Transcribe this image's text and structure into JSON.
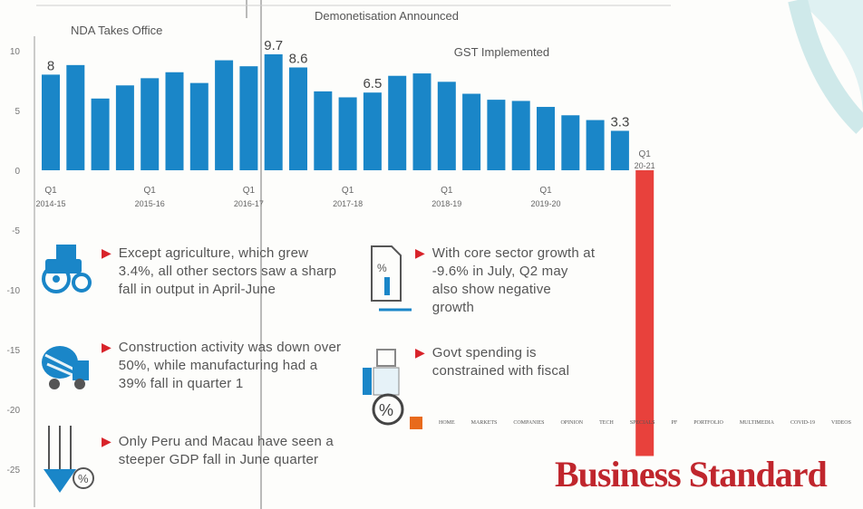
{
  "chart_data": {
    "type": "bar",
    "y_ticks": [
      "10",
      "5",
      "0",
      "-5",
      "-10",
      "-15",
      "-20",
      "-25"
    ],
    "ylim": [
      -25,
      11
    ],
    "x_tick_labels": [
      {
        "q": "Q1",
        "fy": "2014-15",
        "index": 0
      },
      {
        "q": "Q1",
        "fy": "2015-16",
        "index": 4
      },
      {
        "q": "Q1",
        "fy": "2016-17",
        "index": 8
      },
      {
        "q": "Q1",
        "fy": "2017-18",
        "index": 12
      },
      {
        "q": "Q1",
        "fy": "2018-19",
        "index": 16
      },
      {
        "q": "Q1",
        "fy": "2019-20",
        "index": 20
      },
      {
        "q": "Q1",
        "fy": "20-21",
        "index": 24
      }
    ],
    "values": [
      8,
      8.8,
      6,
      7.1,
      7.7,
      8.2,
      7.3,
      9.2,
      8.7,
      9.7,
      8.6,
      6.6,
      6.1,
      6.5,
      7.9,
      8.1,
      7.4,
      6.4,
      5.9,
      5.8,
      5.3,
      4.6,
      4.2,
      3.3,
      -23.9
    ],
    "colors": {
      "positive": "#1a86c8",
      "negative": "#e8413c"
    },
    "data_labels": [
      {
        "index": 0,
        "text": "8"
      },
      {
        "index": 9,
        "text": "9.7"
      },
      {
        "index": 10,
        "text": "8.6"
      },
      {
        "index": 13,
        "text": "6.5"
      },
      {
        "index": 23,
        "text": "3.3"
      }
    ],
    "annotations": [
      {
        "index": 0,
        "text": "NDA Takes Office"
      },
      {
        "index": 10,
        "text": "Demonetisation Announced"
      },
      {
        "index": 16,
        "text": "GST Implemented"
      }
    ],
    "grid": false,
    "legend": "none"
  },
  "bullets": [
    {
      "text": "Except agriculture, which grew 3.4%, all other sectors saw a sharp fall in output in April-June"
    },
    {
      "text": "Construction activity was down over 50%, while manufacturing had a 39% fall in quarter 1"
    },
    {
      "text": "Only Peru and Macau have seen a steeper GDP fall in June quarter"
    },
    {
      "text": "With core sector growth at -9.6% in July, Q2 may also show negative growth"
    },
    {
      "text": "Govt spending is constrained with fiscal"
    }
  ],
  "icons": {
    "tractor": "tractor-icon",
    "cement_mixer": "cement-mixer-icon",
    "down_percent": "down-percent-icon",
    "document_percent": "document-percent-icon",
    "money_bag_percent": "money-bag-percent-icon"
  },
  "brand": "Business Standard",
  "nav_items": [
    "HOME",
    "MARKETS",
    "COMPANIES",
    "OPINION",
    "TECH",
    "SPECIALS",
    "PF",
    "PORTFOLIO",
    "MULTIMEDIA",
    "COVID-19",
    "VIDEOS"
  ]
}
